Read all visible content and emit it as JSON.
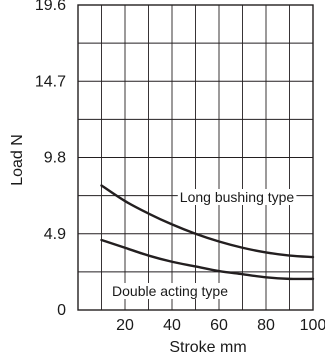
{
  "chart_data": {
    "type": "line",
    "title": "",
    "xlabel": "Stroke  mm",
    "ylabel": "Load  N",
    "xlim": [
      0,
      100
    ],
    "ylim": [
      0,
      19.6
    ],
    "xticks": [
      20,
      40,
      60,
      80,
      100
    ],
    "yticks": [
      0,
      4.9,
      9.8,
      14.7,
      19.6
    ],
    "ytick_labels": [
      "0",
      "4.9",
      "9.8",
      "14.7",
      "19.6"
    ],
    "grid": true,
    "series": [
      {
        "name": "Long bushing type",
        "x": [
          10,
          20,
          30,
          40,
          50,
          60,
          70,
          80,
          90,
          100
        ],
        "y": [
          8.0,
          7.0,
          6.2,
          5.5,
          4.9,
          4.4,
          4.0,
          3.7,
          3.5,
          3.4
        ]
      },
      {
        "name": "Double acting type",
        "x": [
          10,
          20,
          30,
          40,
          50,
          60,
          70,
          80,
          90,
          100
        ],
        "y": [
          4.5,
          4.0,
          3.5,
          3.1,
          2.8,
          2.5,
          2.3,
          2.1,
          2.0,
          2.0
        ]
      }
    ]
  }
}
